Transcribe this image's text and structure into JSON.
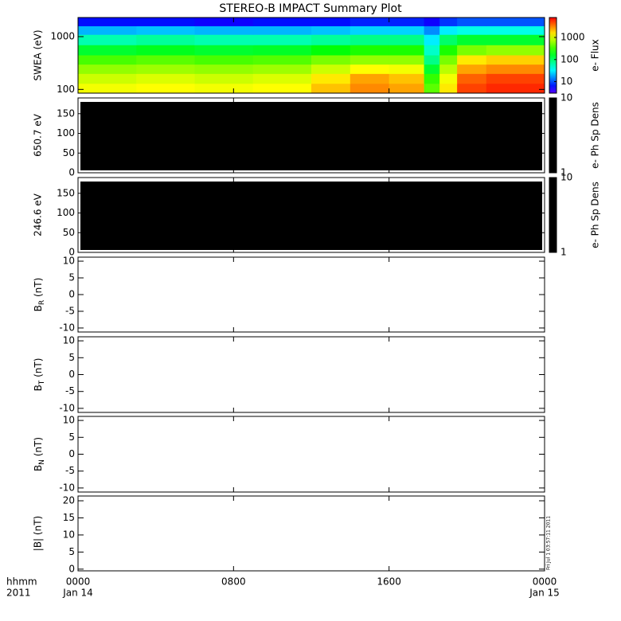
{
  "chart_data": {
    "type": "multi-panel",
    "title": "STEREO-B IMPACT Summary Plot",
    "xlim": [
      0,
      24
    ],
    "xticks": [
      {
        "value": 0,
        "label": "0000"
      },
      {
        "value": 8,
        "label": "0800"
      },
      {
        "value": 16,
        "label": "1600"
      },
      {
        "value": 24,
        "label": "0000"
      }
    ],
    "xdates": [
      {
        "value": 0,
        "label": "Jan 14"
      },
      {
        "value": 24,
        "label": "Jan 15"
      }
    ],
    "xlabel": "hhmm",
    "year": "2011",
    "timestamp": "Fri Jul 1 03:57:11 2011",
    "panels": [
      {
        "type": "spectrogram",
        "ylabel": "SWEA (eV)",
        "log": true,
        "ylim": [
          85,
          2300
        ],
        "yticks": [
          100,
          1000
        ],
        "times": [
          0,
          3,
          6,
          9,
          12,
          14,
          16,
          17.8,
          18.6,
          19.5,
          21,
          24
        ],
        "energies": [
          85,
          130,
          200,
          300,
          450,
          700,
          1100,
          1600,
          2300
        ],
        "values": [
          [
            1200,
            1300,
            1200,
            1300,
            2000,
            3000,
            2500,
            400,
            1500,
            5000,
            6000
          ],
          [
            900,
            1000,
            900,
            1000,
            1500,
            2500,
            2000,
            300,
            1200,
            4000,
            5000
          ],
          [
            600,
            650,
            600,
            650,
            900,
            1300,
            1200,
            150,
            800,
            2500,
            3000
          ],
          [
            350,
            400,
            350,
            380,
            500,
            600,
            600,
            80,
            500,
            1500,
            1800
          ],
          [
            150,
            170,
            150,
            160,
            200,
            250,
            250,
            50,
            250,
            500,
            600
          ],
          [
            60,
            70,
            60,
            60,
            70,
            80,
            80,
            30,
            100,
            150,
            150
          ],
          [
            20,
            22,
            20,
            20,
            22,
            25,
            25,
            15,
            30,
            40,
            40
          ],
          [
            6,
            6,
            5,
            6,
            6,
            7,
            7,
            5,
            8,
            10,
            10
          ]
        ],
        "colorbar": {
          "label": "e- Flux",
          "lim": [
            3,
            8000
          ],
          "ticks": [
            10,
            100,
            1000
          ],
          "log": true
        }
      },
      {
        "type": "density",
        "ylabel": "650.7 eV",
        "ylim": [
          0,
          190
        ],
        "yticks": [
          0,
          50,
          100,
          150
        ],
        "color": "#000000",
        "colorbar": {
          "label": "e- Ph Sp Dens",
          "lim": [
            1,
            10
          ],
          "ticks": [
            1,
            10
          ],
          "log": true,
          "color": "#000000"
        }
      },
      {
        "type": "density",
        "ylabel": "246.6 eV",
        "ylim": [
          0,
          190
        ],
        "yticks": [
          0,
          50,
          100,
          150
        ],
        "color": "#000000",
        "colorbar": {
          "label": "e- Ph Sp Dens",
          "lim": [
            1,
            10
          ],
          "ticks": [
            1,
            10
          ],
          "log": true,
          "color": "#000000"
        }
      },
      {
        "type": "line",
        "ylabel": {
          "main": "B",
          "sub": "R",
          "unit": " (nT)"
        },
        "ylim": [
          -11.2,
          11.2
        ],
        "yticks": [
          -10,
          -5,
          0,
          5,
          10
        ]
      },
      {
        "type": "line",
        "ylabel": {
          "main": "B",
          "sub": "T",
          "unit": " (nT)"
        },
        "ylim": [
          -11.2,
          11.2
        ],
        "yticks": [
          -10,
          -5,
          0,
          5,
          10
        ]
      },
      {
        "type": "line",
        "ylabel": {
          "main": "B",
          "sub": "N",
          "unit": " (nT)"
        },
        "ylim": [
          -11.2,
          11.2
        ],
        "yticks": [
          -10,
          -5,
          0,
          5,
          10
        ]
      },
      {
        "type": "line",
        "ylabel": "|B| (nT)",
        "ylim": [
          -0.5,
          21.4
        ],
        "yticks": [
          0,
          5,
          10,
          15,
          20
        ]
      }
    ]
  }
}
